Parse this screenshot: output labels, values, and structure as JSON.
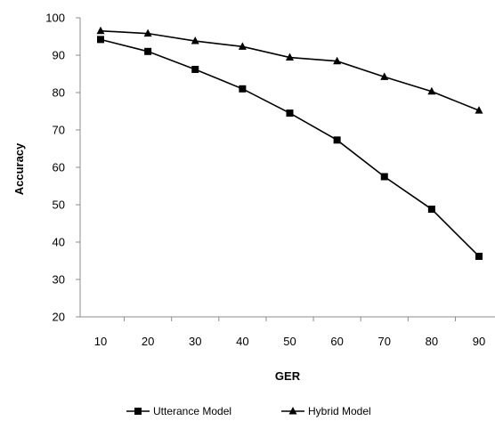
{
  "chart_data": {
    "type": "line",
    "title": "",
    "xlabel": "GER",
    "ylabel": "Accuracy",
    "x": [
      10,
      20,
      30,
      40,
      50,
      60,
      70,
      80,
      90
    ],
    "xlim": [
      10,
      90
    ],
    "ylim": [
      20,
      100
    ],
    "yticks": [
      20,
      30,
      40,
      50,
      60,
      70,
      80,
      90,
      100
    ],
    "grid": false,
    "legend_position": "bottom",
    "series": [
      {
        "name": "Utterance Model",
        "marker": "square",
        "color": "#000000",
        "values": [
          94.2,
          91.0,
          86.2,
          81.0,
          74.5,
          67.3,
          57.5,
          48.8,
          36.2
        ]
      },
      {
        "name": "Hybrid Model",
        "marker": "triangle",
        "color": "#000000",
        "values": [
          96.5,
          95.8,
          93.8,
          92.3,
          89.4,
          88.4,
          84.2,
          80.3,
          75.2
        ]
      }
    ]
  }
}
